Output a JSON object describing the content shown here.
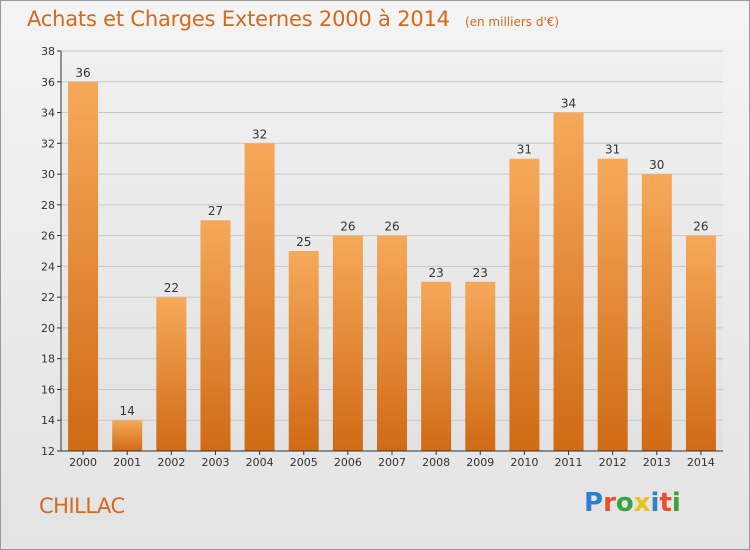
{
  "title": "Achats et Charges Externes 2000 à 2014",
  "unit_note": "(en milliers d'€)",
  "commune": "CHILLAC",
  "logo": {
    "text": "Proxiti",
    "letter_colors": [
      "#2f7fcf",
      "#e8502d",
      "#3aa23a",
      "#e5c31c",
      "#2f7fcf",
      "#e8502d",
      "#3aa23a"
    ]
  },
  "colors": {
    "accent": "#d2691e",
    "bar_top": "#f6a95a",
    "bar_bottom": "#d06a15",
    "grid": "#c8c8c8",
    "axis": "#333333"
  },
  "chart_data": {
    "type": "bar",
    "title": "Achats et Charges Externes 2000 à 2014",
    "categories": [
      "2000",
      "2001",
      "2002",
      "2003",
      "2004",
      "2005",
      "2006",
      "2007",
      "2008",
      "2009",
      "2010",
      "2011",
      "2012",
      "2013",
      "2014"
    ],
    "values": [
      36,
      14,
      22,
      27,
      32,
      25,
      26,
      26,
      23,
      23,
      31,
      34,
      31,
      30,
      26
    ],
    "ylim": [
      12,
      38
    ],
    "yticks": [
      12,
      14,
      16,
      18,
      20,
      22,
      24,
      26,
      28,
      30,
      32,
      34,
      36,
      38
    ],
    "grid": true,
    "data_labels": true
  }
}
